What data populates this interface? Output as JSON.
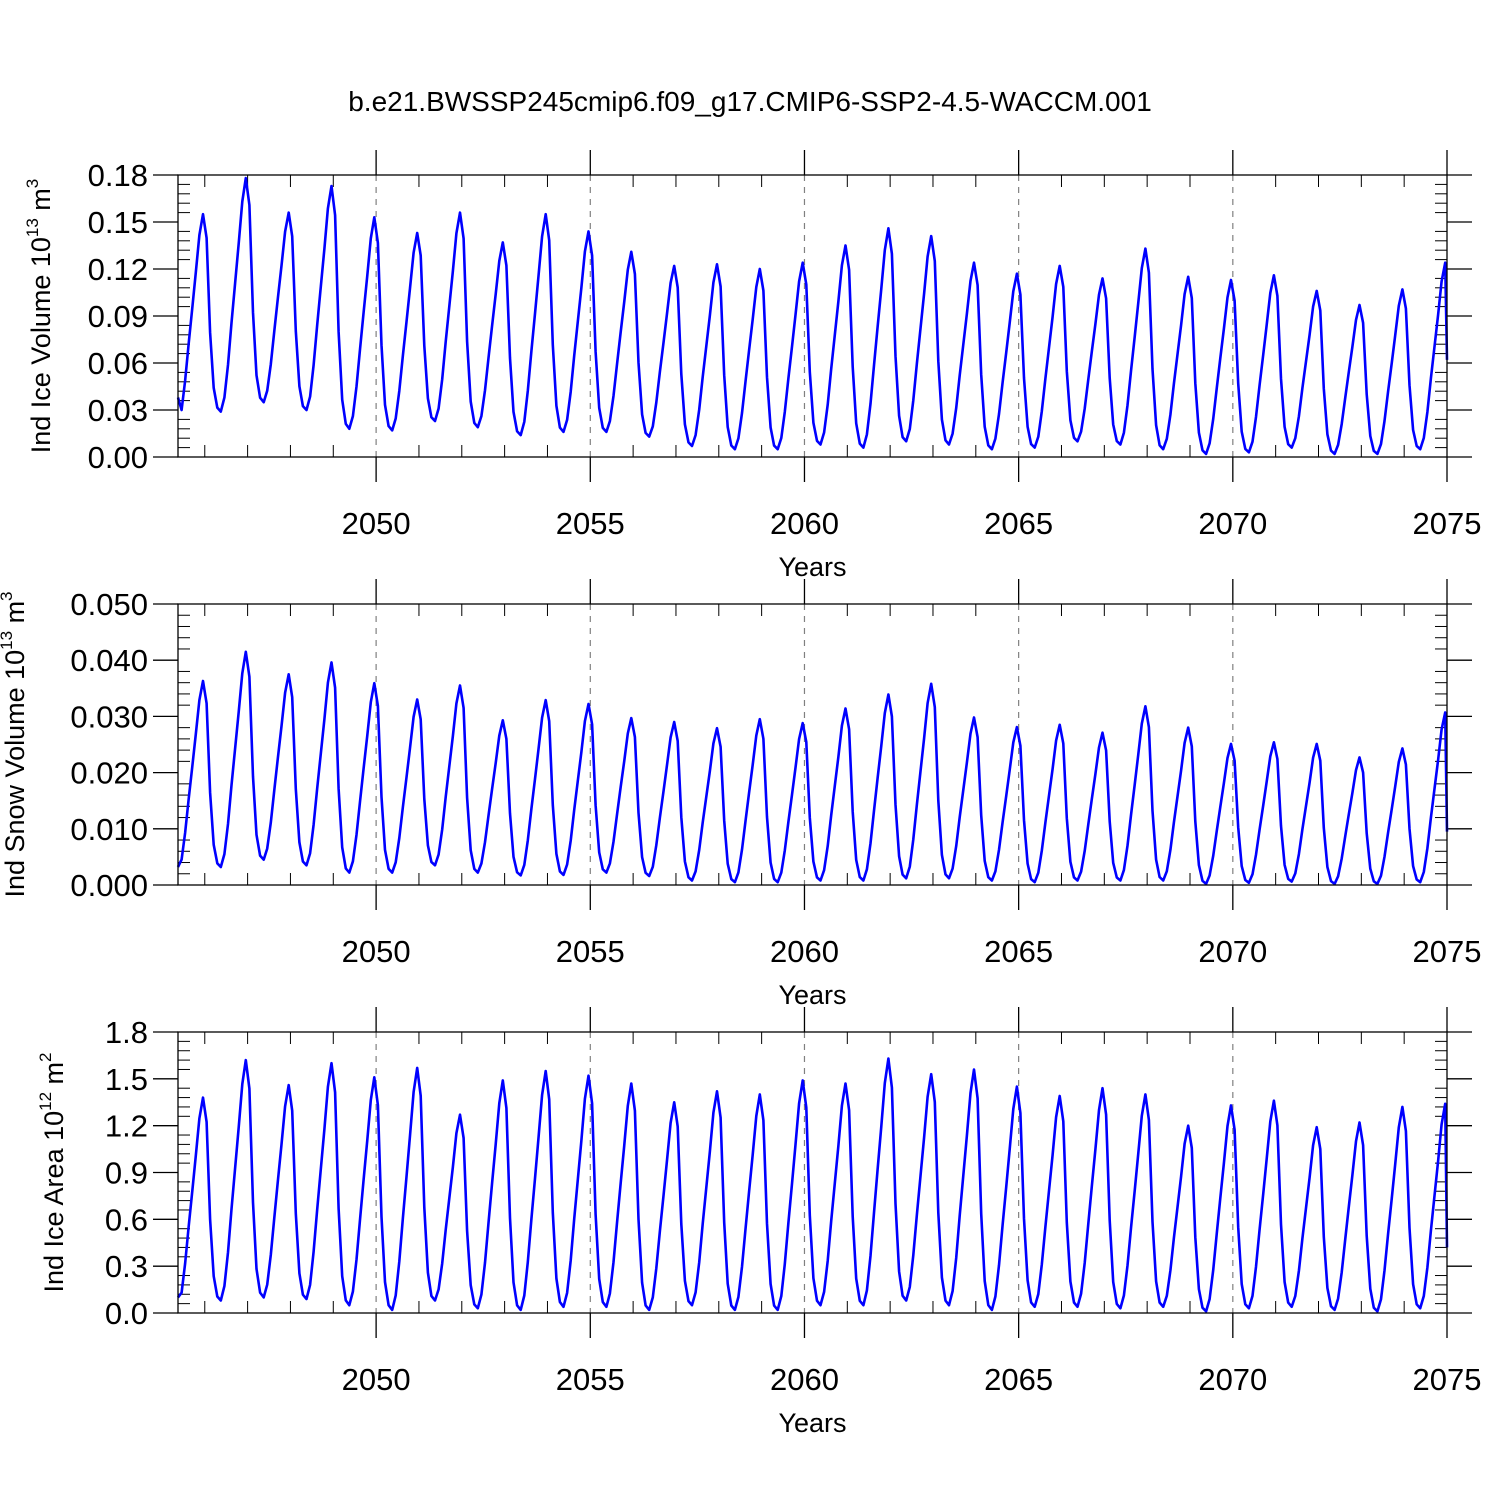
{
  "figure": {
    "title": "b.e21.BWSSP245cmip6.f09_g17.CMIP6-SSP2-4.5-WACCM.001",
    "line_color": "#0000ff",
    "grid_color": "#808080"
  },
  "chart_data": [
    {
      "type": "line",
      "id": "ice-volume",
      "ylabel_main": "Ind Ice Volume 10",
      "ylabel_exp": "13",
      "ylabel_unit": " m",
      "ylabel_unit_exp": "3",
      "xlabel": "Years",
      "xlim": [
        2045.375,
        2075.0
      ],
      "ylim": [
        0,
        0.18
      ],
      "xticks": [
        2050,
        2055,
        2060,
        2065,
        2070,
        2075
      ],
      "xtick_labels": [
        "2050",
        "2055",
        "2060",
        "2065",
        "2070",
        "2075"
      ],
      "yticks": [
        0,
        0.03,
        0.06,
        0.09,
        0.12,
        0.15,
        0.18
      ],
      "ytick_labels": [
        "0.00",
        "0.03",
        "0.06",
        "0.09",
        "0.12",
        "0.15",
        "0.18"
      ],
      "vgrid": [
        2050,
        2055,
        2060,
        2065,
        2070
      ],
      "start_year": 2045.375,
      "peaks": [
        0.155,
        0.178,
        0.156,
        0.173,
        0.153,
        0.143,
        0.156,
        0.137,
        0.155,
        0.144,
        0.131,
        0.122,
        0.123,
        0.12,
        0.124,
        0.135,
        0.146,
        0.141,
        0.124,
        0.117,
        0.122,
        0.114,
        0.133,
        0.115,
        0.113,
        0.116,
        0.106,
        0.097,
        0.107,
        0.124
      ],
      "troughs": [
        0.022,
        0.029,
        0.035,
        0.03,
        0.018,
        0.017,
        0.023,
        0.019,
        0.014,
        0.016,
        0.016,
        0.013,
        0.007,
        0.005,
        0.005,
        0.008,
        0.006,
        0.01,
        0.008,
        0.005,
        0.006,
        0.01,
        0.008,
        0.005,
        0.002,
        0.003,
        0.006,
        0.002,
        0.002,
        0.005
      ],
      "first_value": 0.038,
      "last_value": 0.062
    },
    {
      "type": "line",
      "id": "snow-volume",
      "ylabel_main": "Ind Snow Volume 10",
      "ylabel_exp": "13",
      "ylabel_unit": " m",
      "ylabel_unit_exp": "3",
      "xlabel": "Years",
      "xlim": [
        2045.375,
        2075.0
      ],
      "ylim": [
        0,
        0.05
      ],
      "xticks": [
        2050,
        2055,
        2060,
        2065,
        2070,
        2075
      ],
      "xtick_labels": [
        "2050",
        "2055",
        "2060",
        "2065",
        "2070",
        "2075"
      ],
      "yticks": [
        0,
        0.01,
        0.02,
        0.03,
        0.04,
        0.05
      ],
      "ytick_labels": [
        "0.000",
        "0.010",
        "0.020",
        "0.030",
        "0.040",
        "0.050"
      ],
      "vgrid": [
        2050,
        2055,
        2060,
        2065,
        2070
      ],
      "start_year": 2045.375,
      "peaks": [
        0.0363,
        0.0415,
        0.0375,
        0.0396,
        0.0359,
        0.033,
        0.0355,
        0.0293,
        0.0329,
        0.0322,
        0.0297,
        0.029,
        0.0279,
        0.0295,
        0.0288,
        0.0314,
        0.0339,
        0.0358,
        0.0298,
        0.0281,
        0.0285,
        0.0271,
        0.0318,
        0.028,
        0.0251,
        0.0254,
        0.0251,
        0.0227,
        0.0243,
        0.0307
      ],
      "troughs": [
        0.0025,
        0.0032,
        0.0045,
        0.0035,
        0.0022,
        0.0022,
        0.0035,
        0.0022,
        0.0017,
        0.0018,
        0.0022,
        0.0016,
        0.0008,
        0.0005,
        0.0005,
        0.0008,
        0.0008,
        0.0012,
        0.0012,
        0.0008,
        0.0005,
        0.0008,
        0.0008,
        0.0008,
        0.0002,
        0.0004,
        0.0006,
        0.0002,
        0.0002,
        0.0005
      ],
      "first_value": 0.0032,
      "last_value": 0.0095
    },
    {
      "type": "line",
      "id": "ice-area",
      "ylabel_main": "Ind Ice Area 10",
      "ylabel_exp": "12",
      "ylabel_unit": " m",
      "ylabel_unit_exp": "2",
      "xlabel": "Years",
      "xlim": [
        2045.375,
        2075.0
      ],
      "ylim": [
        0,
        1.8
      ],
      "xticks": [
        2050,
        2055,
        2060,
        2065,
        2070,
        2075
      ],
      "xtick_labels": [
        "2050",
        "2055",
        "2060",
        "2065",
        "2070",
        "2075"
      ],
      "yticks": [
        0,
        0.3,
        0.6,
        0.9,
        1.2,
        1.5,
        1.8
      ],
      "ytick_labels": [
        "0.0",
        "0.3",
        "0.6",
        "0.9",
        "1.2",
        "1.5",
        "1.8"
      ],
      "vgrid": [
        2050,
        2055,
        2060,
        2065,
        2070
      ],
      "start_year": 2045.375,
      "peaks": [
        1.38,
        1.62,
        1.46,
        1.6,
        1.51,
        1.57,
        1.27,
        1.49,
        1.55,
        1.52,
        1.47,
        1.35,
        1.42,
        1.4,
        1.49,
        1.47,
        1.63,
        1.53,
        1.56,
        1.45,
        1.39,
        1.44,
        1.4,
        1.2,
        1.33,
        1.36,
        1.19,
        1.22,
        1.32,
        1.34
      ],
      "troughs": [
        0.05,
        0.08,
        0.1,
        0.09,
        0.05,
        0.02,
        0.08,
        0.03,
        0.02,
        0.04,
        0.04,
        0.02,
        0.05,
        0.02,
        0.02,
        0.05,
        0.05,
        0.08,
        0.05,
        0.02,
        0.04,
        0.04,
        0.03,
        0.04,
        0.01,
        0.03,
        0.04,
        0.02,
        0.01,
        0.03
      ],
      "first_value": 0.1,
      "last_value": 0.42
    }
  ]
}
